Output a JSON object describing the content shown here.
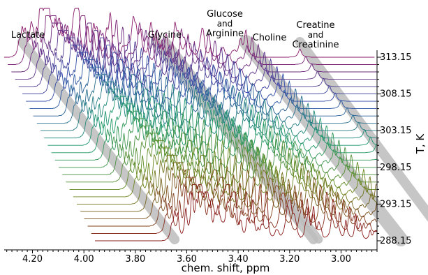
{
  "chart_data": {
    "type": "line",
    "style": "waterfall (stacked NMR spectra, offset per temperature)",
    "xlabel": "chem. shift, ppm",
    "ylabel": "T, K",
    "x_reversed": true,
    "xlim": [
      4.31,
      2.86
    ],
    "x_ticks": [
      "4.20",
      "4.00",
      "3.80",
      "3.60",
      "3.40",
      "3.20",
      "3.00"
    ],
    "x_tick_values": [
      4.2,
      4.0,
      3.8,
      3.6,
      3.4,
      3.2,
      3.0
    ],
    "y_ticks": [
      "313.15",
      "308.15",
      "303.15",
      "298.15",
      "293.15",
      "288.15"
    ],
    "y_tick_values": [
      313.15,
      308.15,
      303.15,
      298.15,
      293.15,
      288.15
    ],
    "ylim": [
      288.15,
      313.15
    ],
    "temperatures_K": [
      288.15,
      289.15,
      290.15,
      291.15,
      292.15,
      293.15,
      294.15,
      295.15,
      296.15,
      297.15,
      298.15,
      299.15,
      300.15,
      301.15,
      302.15,
      303.15,
      304.15,
      305.15,
      306.15,
      307.15,
      308.15,
      309.15,
      310.15,
      311.15,
      312.15,
      313.15
    ],
    "grid": false,
    "legend": "none",
    "series_colors": {
      "low_T": "#8b1a1a",
      "mid_low_T": "#6a8a1a",
      "mid_T": "#1a9a6a",
      "mid_high_T": "#2a4aa8",
      "high_T": "#8a1a6a"
    },
    "highlight_band_color": "#bdbdbd",
    "annotations": [
      {
        "lines": [
          "Lactate"
        ]
      },
      {
        "lines": [
          "Glycine"
        ]
      },
      {
        "lines": [
          "Glucose",
          "and",
          "Arginine"
        ]
      },
      {
        "lines": [
          "Choline"
        ]
      },
      {
        "lines": [
          "Creatine",
          "and",
          "Creatinine"
        ]
      }
    ],
    "peak_groups_ppm": [
      {
        "name": "Lactate",
        "ppm_at_288K": 4.0,
        "ppm_at_313K": 4.24,
        "height": 1.0
      },
      {
        "name": "Glycine",
        "ppm_at_288K": 3.44,
        "ppm_at_313K": 3.68,
        "height": 0.6
      },
      {
        "name": "Glucose and Arginine",
        "ppm_at_288K": 3.46,
        "ppm_at_313K": 3.72,
        "height": 0.9
      },
      {
        "name": "Choline",
        "ppm_at_288K": 3.12,
        "ppm_at_313K": 3.37,
        "height": 1.0
      },
      {
        "name": "Creatine and Creatinine",
        "ppm_at_288K": 2.94,
        "ppm_at_313K": 3.16,
        "height": 0.35
      }
    ]
  }
}
